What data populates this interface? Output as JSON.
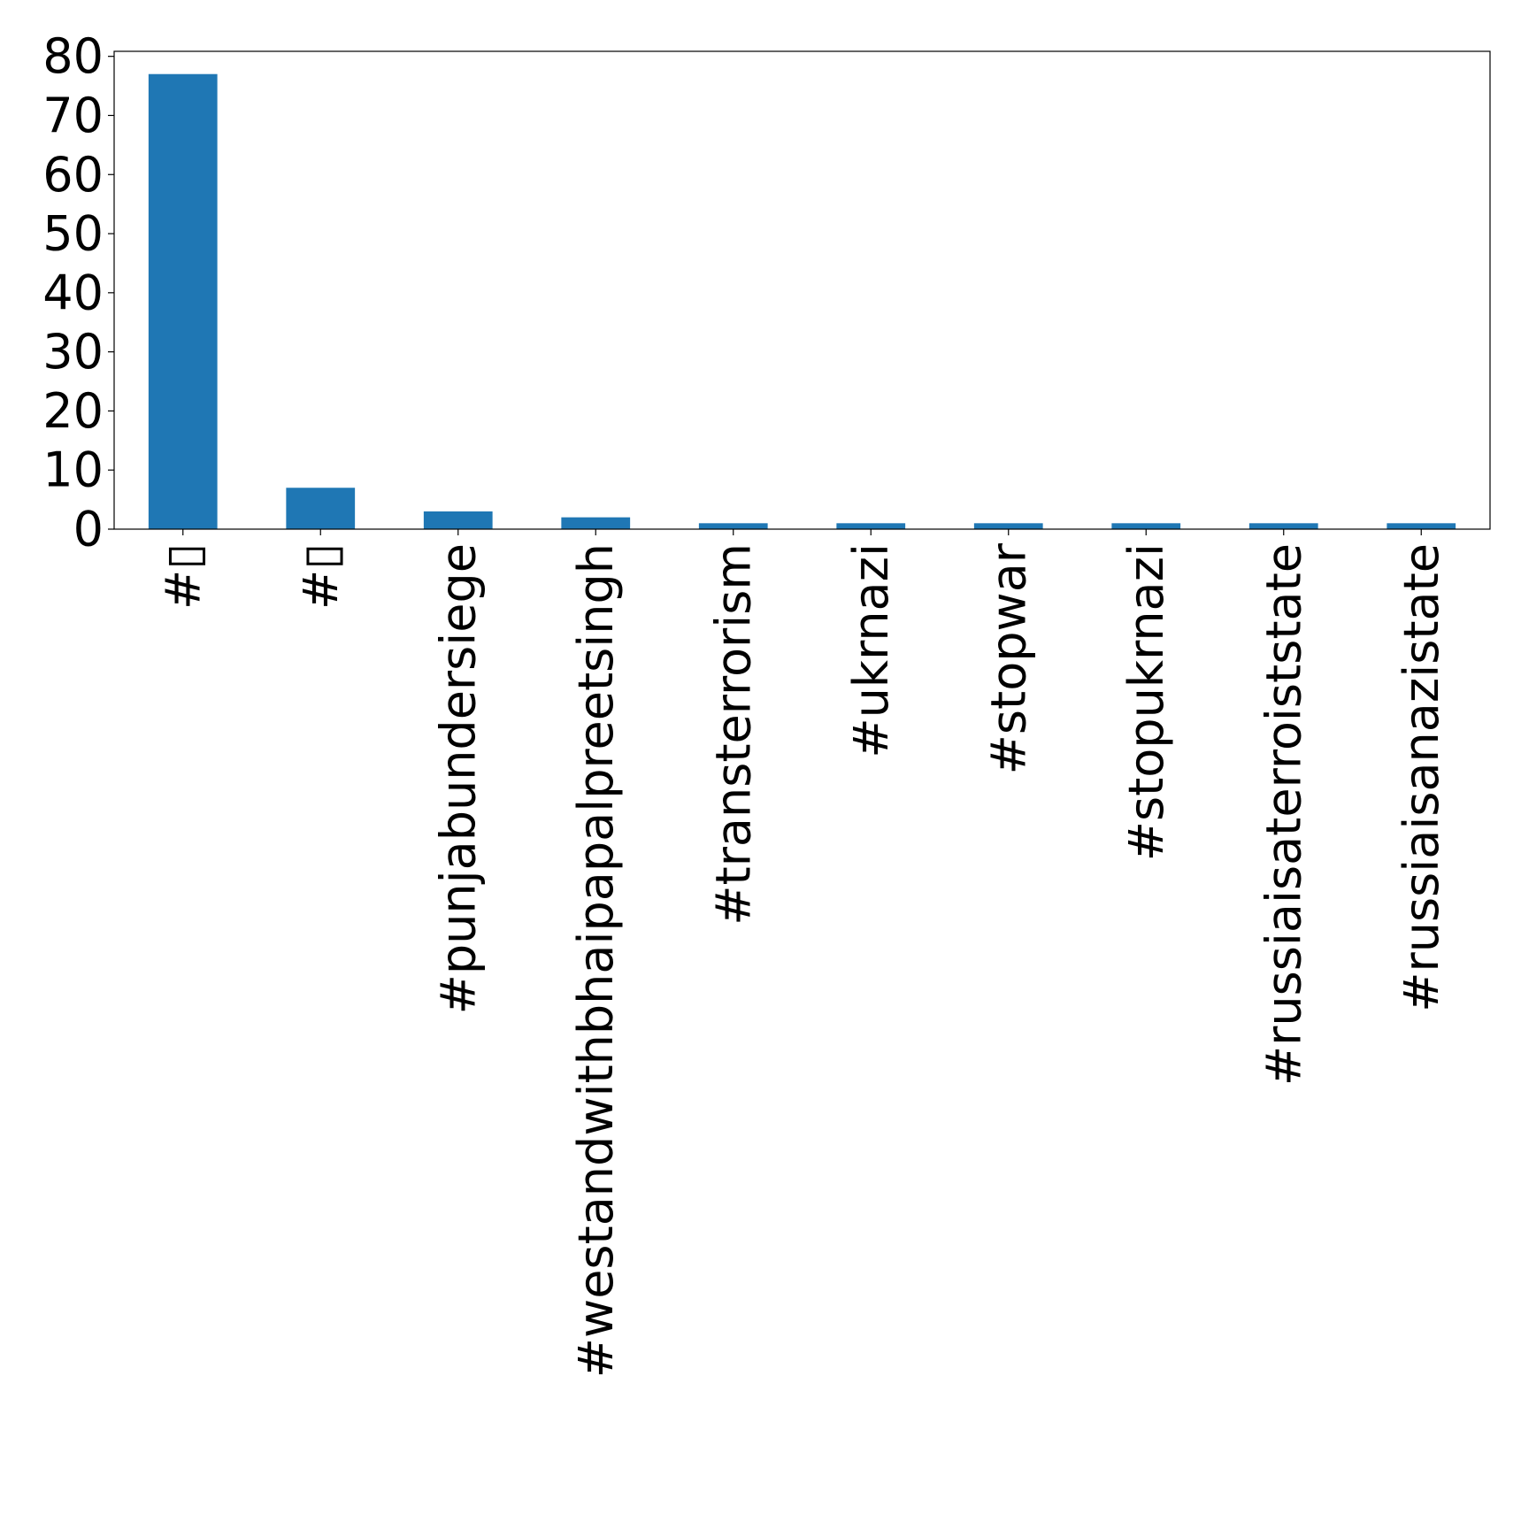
{
  "chart_data": {
    "type": "bar",
    "categories": [
      "#▯",
      "#▯",
      "#punjabundersiege",
      "#westandwithbhaipapalpreetsingh",
      "#transterrorism",
      "#ukrnazi",
      "#stopwar",
      "#stopukrnazi",
      "#russiaisaterroiststate",
      "#russiaisanazistate"
    ],
    "values": [
      77,
      7,
      3,
      2,
      1,
      1,
      1,
      1,
      1,
      1
    ],
    "title": "",
    "xlabel": "",
    "ylabel": "",
    "ylim": [
      0,
      80.85
    ],
    "yticks": [
      0,
      10,
      20,
      30,
      40,
      50,
      60,
      70,
      80
    ],
    "grid": false,
    "legend": "none",
    "bar_color": "#1f77b4",
    "x_tick_rotation": 90
  }
}
